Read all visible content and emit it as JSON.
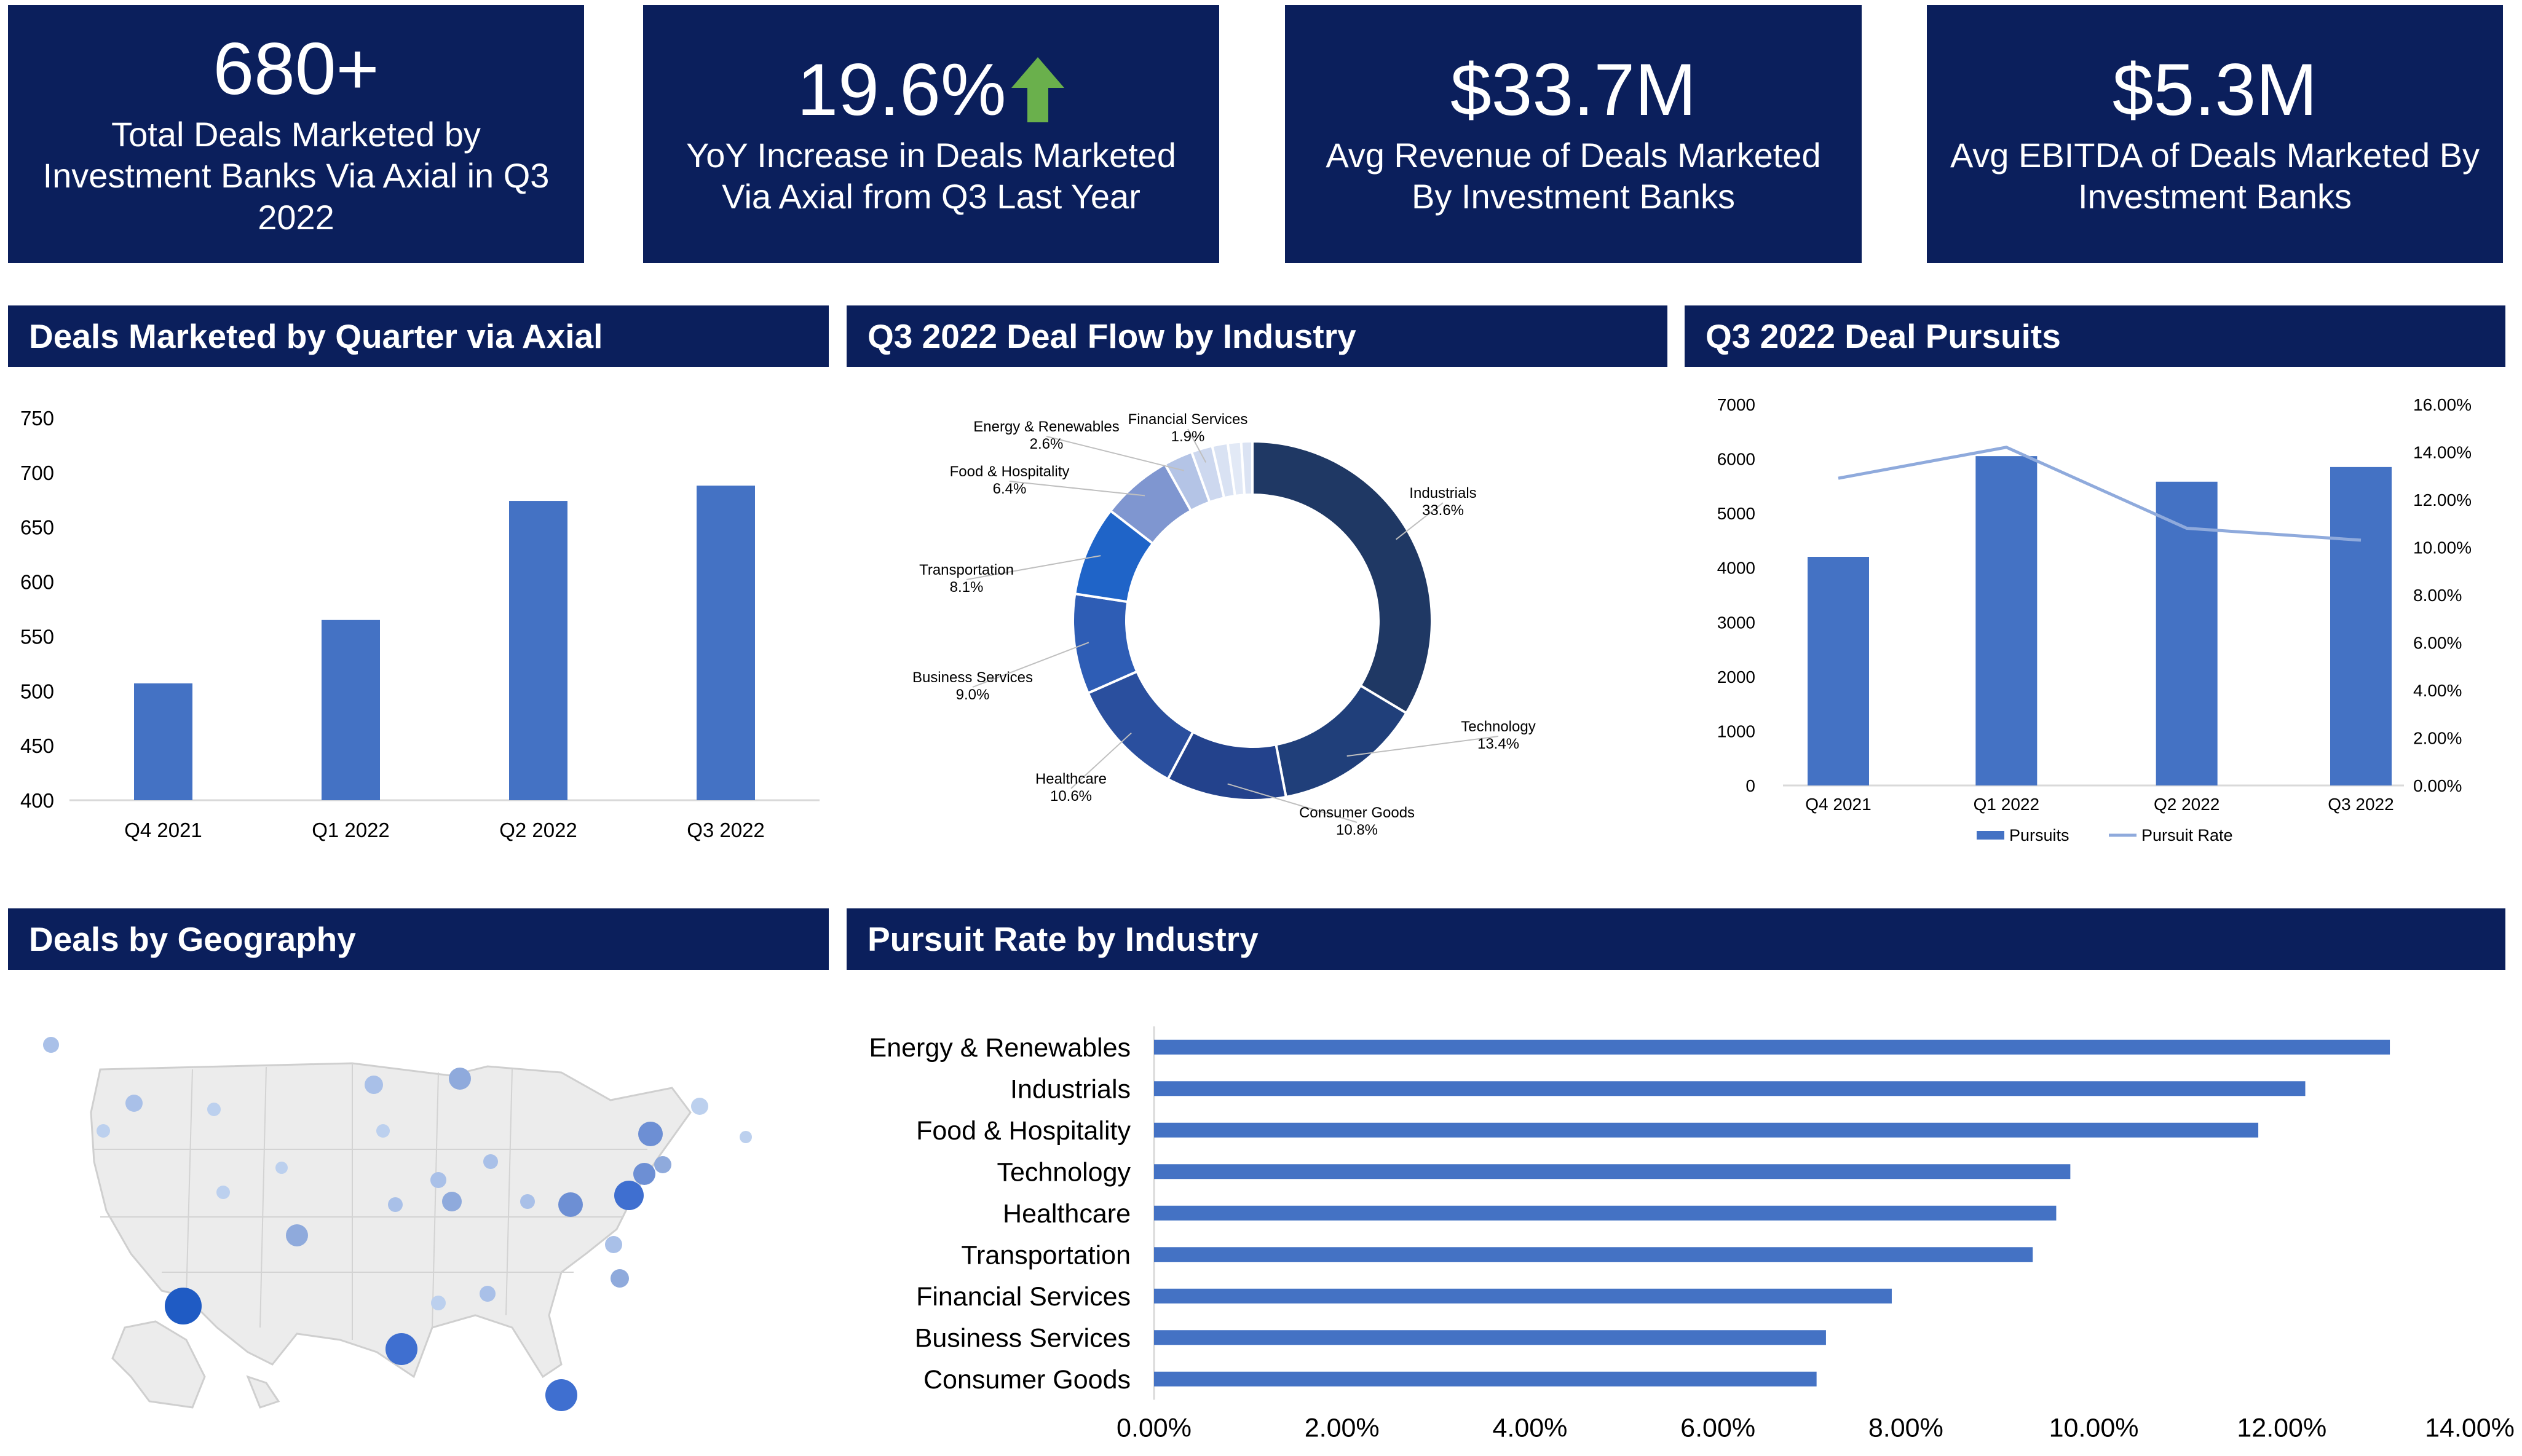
{
  "kpis": [
    {
      "value": "680+",
      "desc": "Total Deals Marketed by Investment Banks Via Axial in Q3 2022",
      "has_arrow": false
    },
    {
      "value": "19.6%",
      "desc": "YoY Increase in Deals Marketed Via Axial from Q3 Last Year",
      "has_arrow": true
    },
    {
      "value": "$33.7M",
      "desc": "Avg Revenue of Deals Marketed By Investment Banks",
      "has_arrow": false
    },
    {
      "value": "$5.3M",
      "desc": "Avg EBITDA of Deals Marketed By Investment Banks",
      "has_arrow": false
    }
  ],
  "sections": {
    "deals_by_quarter": "Deals Marketed by Quarter via Axial",
    "deal_flow_industry": "Q3 2022 Deal Flow by Industry",
    "deal_pursuits": "Q3 2022 Deal Pursuits",
    "geography": "Deals by Geography",
    "pursuit_rate_industry": "Pursuit Rate by Industry"
  },
  "colors": {
    "navy": "#0b1f5c",
    "bar_blue": "#4472c4",
    "line_blue": "#8faadc",
    "arrow_green": "#6ab04c"
  },
  "chart_data": [
    {
      "id": "deals_by_quarter",
      "type": "bar",
      "categories": [
        "Q4  2021",
        "Q1 2022",
        "Q2 2022",
        "Q3 2022"
      ],
      "values": [
        507,
        565,
        674,
        688
      ],
      "ylim": [
        400,
        750
      ],
      "yticks": [
        "400",
        "450",
        "500",
        "550",
        "600",
        "650",
        "700",
        "750"
      ],
      "grid": false
    },
    {
      "id": "deal_flow_industry",
      "type": "pie",
      "donut": true,
      "slices": [
        {
          "name": "Industrials",
          "value": 33.6,
          "label": "33.6%",
          "color": "#1f3864"
        },
        {
          "name": "Technology",
          "value": 13.4,
          "label": "13.4%",
          "color": "#203f7a"
        },
        {
          "name": "Consumer Goods",
          "value": 10.8,
          "label": "10.8%",
          "color": "#23428c"
        },
        {
          "name": "Healthcare",
          "value": 10.6,
          "label": "10.6%",
          "color": "#2a4f9e"
        },
        {
          "name": "Business Services",
          "value": 9.0,
          "label": "9.0%",
          "color": "#2e5db5"
        },
        {
          "name": "Transportation",
          "value": 8.1,
          "label": "8.1%",
          "color": "#1f64c8"
        },
        {
          "name": "Food & Hospitality",
          "value": 6.4,
          "label": "6.4%",
          "color": "#7f96d0"
        },
        {
          "name": "Energy & Renewables",
          "value": 2.6,
          "label": "2.6%",
          "color": "#b4c4e6"
        },
        {
          "name": "Financial Services",
          "value": 1.9,
          "label": "1.9%",
          "color": "#cdd8ef"
        },
        {
          "name": "",
          "value": 1.4,
          "label": "",
          "color": "#d9e2f3"
        },
        {
          "name": "",
          "value": 1.2,
          "label": "",
          "color": "#e2e9f6"
        },
        {
          "name": "",
          "value": 1.0,
          "label": "",
          "color": "#dbe3f3"
        }
      ]
    },
    {
      "id": "deal_pursuits",
      "type": "bar",
      "categories": [
        "Q4  2021",
        "Q1 2022",
        "Q2 2022",
        "Q3 2022"
      ],
      "series": [
        {
          "name": "Pursuits",
          "type": "bar",
          "values": [
            4200,
            6050,
            5580,
            5850
          ]
        },
        {
          "name": "Pursuit Rate",
          "type": "line",
          "axis": "right",
          "values": [
            12.9,
            14.2,
            10.8,
            10.3
          ]
        }
      ],
      "ylim": [
        0,
        7000
      ],
      "yticks": [
        "0",
        "1000",
        "2000",
        "3000",
        "4000",
        "5000",
        "6000",
        "7000"
      ],
      "y2lim": [
        0,
        16
      ],
      "y2ticks": [
        "0.00%",
        "2.00%",
        "4.00%",
        "6.00%",
        "8.00%",
        "10.00%",
        "12.00%",
        "14.00%",
        "16.00%"
      ],
      "legend": "bottom"
    },
    {
      "id": "pursuit_rate_industry",
      "type": "bar",
      "orientation": "horizontal",
      "categories": [
        "Energy & Renewables",
        "Industrials",
        "Food & Hospitality",
        "Technology",
        "Healthcare",
        "Transportation",
        "Financial Services",
        "Business Services",
        "Consumer Goods"
      ],
      "values": [
        13.15,
        12.25,
        11.75,
        9.75,
        9.6,
        9.35,
        7.85,
        7.15,
        7.05
      ],
      "xlim": [
        0,
        14
      ],
      "xticks": [
        "0.00%",
        "2.00%",
        "4.00%",
        "6.00%",
        "8.00%",
        "10.00%",
        "12.00%",
        "14.00%"
      ]
    }
  ]
}
